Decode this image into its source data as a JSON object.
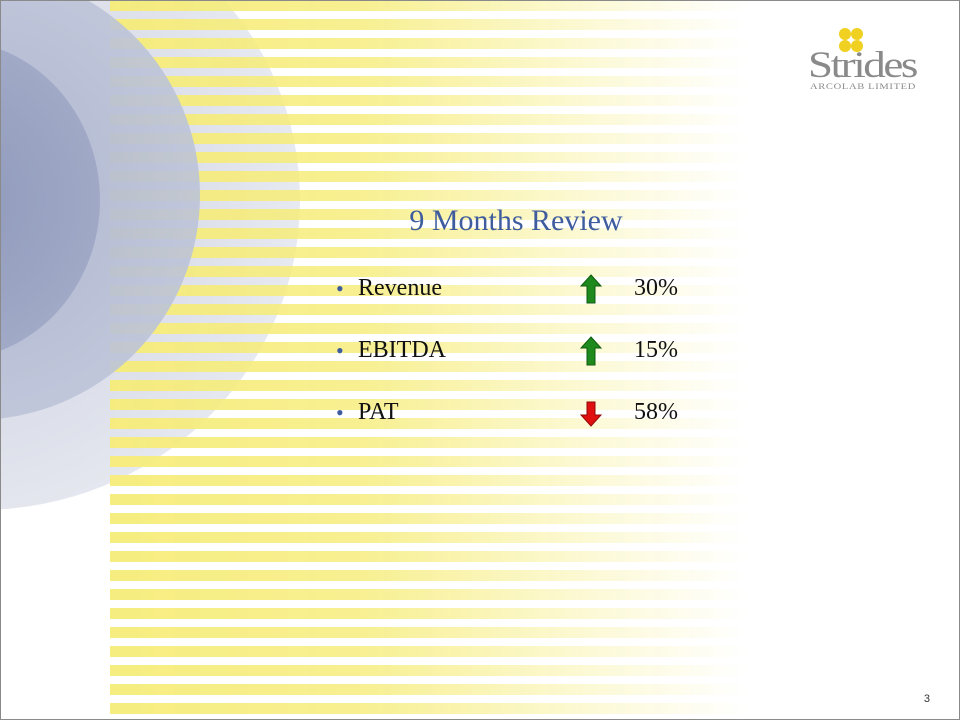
{
  "logo": {
    "name": "Strides",
    "subtitle": "ARCOLAB LIMITED",
    "dot_color": "#f0d020",
    "text_color": "#8a8a8a"
  },
  "title": "9 Months Review",
  "colors": {
    "title": "#3f5c9e",
    "up_arrow": "#1e8a1e",
    "down_arrow": "#e01010",
    "stripe": "#f6ec78"
  },
  "bullet_glyph": "•",
  "items": [
    {
      "label": "Revenue",
      "direction": "up",
      "arrow_icon": "arrow-up-icon",
      "value": "30%"
    },
    {
      "label": "EBITDA",
      "direction": "up",
      "arrow_icon": "arrow-up-icon",
      "value": "15%"
    },
    {
      "label": "PAT",
      "direction": "down",
      "arrow_icon": "arrow-down-icon",
      "value": "58%"
    }
  ],
  "page_number": "3"
}
